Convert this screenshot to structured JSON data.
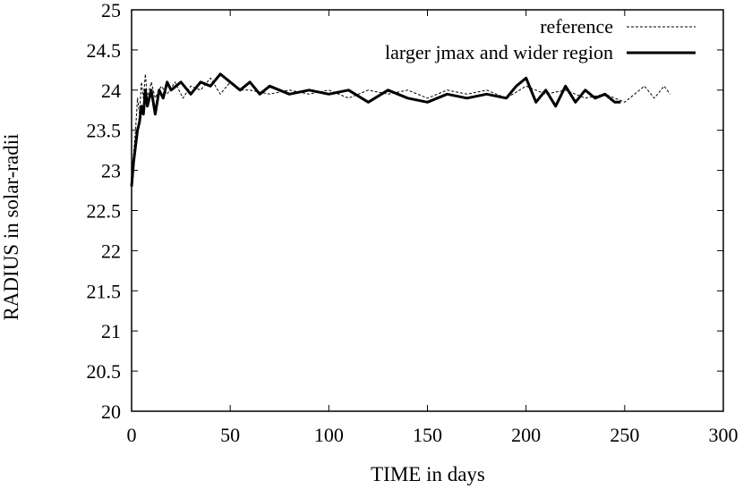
{
  "chart_data": {
    "type": "line",
    "title": "",
    "xlabel": "TIME in days",
    "ylabel": "RADIUS in solar-radii",
    "xlim": [
      0,
      300
    ],
    "ylim": [
      20,
      25
    ],
    "xticks": [
      0,
      50,
      100,
      150,
      200,
      250,
      300
    ],
    "yticks": [
      20,
      20.5,
      21,
      21.5,
      22,
      22.5,
      23,
      23.5,
      24,
      24.5,
      25
    ],
    "xtick_labels": [
      "0",
      "50",
      "100",
      "150",
      "200",
      "250",
      "300"
    ],
    "ytick_labels": [
      "20",
      "20.5",
      "21",
      "21.5",
      "22",
      "22.5",
      "23",
      "23.5",
      "24",
      "24.5",
      "25"
    ],
    "grid": false,
    "legend_position": "top-right",
    "series": [
      {
        "name": "reference",
        "style": "thin-dashed",
        "color": "#000000",
        "x": [
          0,
          1,
          2,
          3,
          4,
          5,
          6,
          7,
          8,
          10,
          12,
          15,
          18,
          22,
          26,
          30,
          35,
          40,
          45,
          50,
          55,
          60,
          70,
          80,
          90,
          100,
          110,
          120,
          130,
          140,
          150,
          160,
          170,
          180,
          190,
          200,
          210,
          220,
          230,
          240,
          250,
          255,
          260,
          265,
          270,
          273
        ],
        "y": [
          22.9,
          23.2,
          23.5,
          23.9,
          23.7,
          24.1,
          23.9,
          24.2,
          23.9,
          24.1,
          23.9,
          24.05,
          23.95,
          24.1,
          23.9,
          24.05,
          24.0,
          24.15,
          23.95,
          24.1,
          24.0,
          24.0,
          23.95,
          24.0,
          23.95,
          24.0,
          23.9,
          24.0,
          23.95,
          24.0,
          23.9,
          24.0,
          23.95,
          24.0,
          23.9,
          24.05,
          23.95,
          24.0,
          23.9,
          23.95,
          23.85,
          23.95,
          24.05,
          23.9,
          24.05,
          23.95
        ]
      },
      {
        "name": "larger jmax and wider region",
        "style": "thick-solid",
        "color": "#000000",
        "x": [
          0,
          1,
          2,
          3,
          4,
          5,
          6,
          7,
          8,
          10,
          12,
          14,
          16,
          18,
          20,
          25,
          30,
          35,
          40,
          45,
          50,
          55,
          60,
          65,
          70,
          80,
          90,
          100,
          110,
          120,
          130,
          140,
          150,
          160,
          170,
          180,
          190,
          195,
          200,
          205,
          210,
          215,
          220,
          225,
          230,
          235,
          240,
          245,
          248
        ],
        "y": [
          22.8,
          23.1,
          23.3,
          23.5,
          23.6,
          23.8,
          23.7,
          24.0,
          23.8,
          24.0,
          23.7,
          24.0,
          23.9,
          24.1,
          24.0,
          24.1,
          23.95,
          24.1,
          24.05,
          24.2,
          24.1,
          24.0,
          24.1,
          23.95,
          24.05,
          23.95,
          24.0,
          23.95,
          24.0,
          23.85,
          24.0,
          23.9,
          23.85,
          23.95,
          23.9,
          23.95,
          23.9,
          24.05,
          24.15,
          23.85,
          24.0,
          23.8,
          24.05,
          23.85,
          24.0,
          23.9,
          23.95,
          23.85,
          23.85
        ]
      }
    ]
  }
}
